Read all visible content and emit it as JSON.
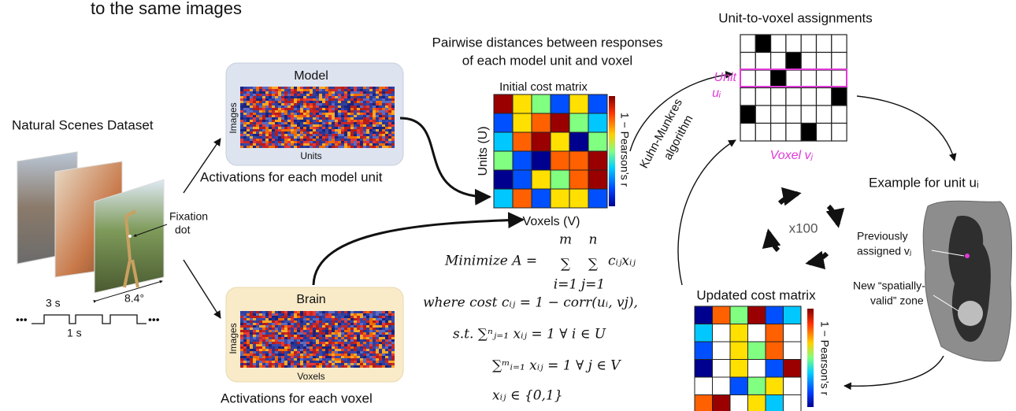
{
  "header": {
    "title": "to the same images"
  },
  "dataset": {
    "title": "Natural Scenes Dataset",
    "fixation": [
      "Fixation",
      "dot"
    ],
    "angle": "8.4°",
    "on_time": "3 s",
    "off_time": "1 s",
    "ellipsis": "•••"
  },
  "model": {
    "title": "Model",
    "y_label": "Images",
    "x_label": "Units",
    "caption": "Activations for each model unit"
  },
  "brain": {
    "title": "Brain",
    "y_label": "Images",
    "x_label": "Voxels",
    "caption": "Activations for each voxel"
  },
  "initial_matrix": {
    "heading": [
      "Pairwise distances between responses",
      "of each model unit and voxel"
    ],
    "title": "Initial cost matrix",
    "y_label": "Units (U)",
    "x_label": "Voxels (V)",
    "colorbar_label": "1 − Pearson’s r"
  },
  "algorithm": [
    "Kuhn-Munkres",
    "algorithm"
  ],
  "equations": {
    "lhs": "Minimize A =",
    "sum1": {
      "symbol": "∑",
      "upper": "m",
      "lower": "i=1"
    },
    "sum2": {
      "symbol": "∑",
      "upper": "n",
      "lower": "j=1"
    },
    "term": "cᵢⱼxᵢⱼ",
    "cost": "where cost cᵢⱼ = 1 − corr(uᵢ, vj),",
    "constraints": [
      "s.t.   ∑ⁿⱼ₌₁ xᵢⱼ = 1 ∀ i ∈ U",
      "∑ᵐᵢ₌₁ xᵢⱼ = 1 ∀ j ∈ V",
      "xᵢⱼ ∈ {0,1}"
    ]
  },
  "assignments": {
    "title": "Unit-to-voxel assignments",
    "unit_label": [
      "Unit",
      "uᵢ"
    ],
    "voxel_label": "Voxel vⱼ"
  },
  "loop": {
    "label": "x100"
  },
  "updated_matrix": {
    "title": "Updated cost matrix",
    "colorbar_label": "1 − Pearson’s r"
  },
  "example": {
    "title": "Example for unit uᵢ",
    "previous": [
      "Previously",
      "assigned vⱼ"
    ],
    "zone": [
      "New “spatially-",
      "valid” zone"
    ]
  }
}
